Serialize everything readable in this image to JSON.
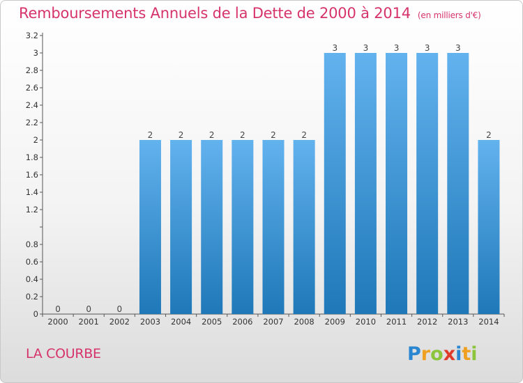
{
  "header": {
    "title": "Remboursements Annuels de la Dette de 2000 à 2014",
    "unit": "(en milliers d'€)"
  },
  "footer": {
    "commune": "LA COURBE",
    "logo_text": "Proxiti"
  },
  "colors": {
    "accent": "#d6336c",
    "bar_top": "#62b2ee",
    "bar_bottom": "#1f78b8"
  },
  "chart_data": {
    "type": "bar",
    "categories": [
      "2000",
      "2001",
      "2002",
      "2003",
      "2004",
      "2005",
      "2006",
      "2007",
      "2008",
      "2009",
      "2010",
      "2011",
      "2012",
      "2013",
      "2014"
    ],
    "values": [
      0,
      0,
      0,
      2,
      2,
      2,
      2,
      2,
      2,
      3,
      3,
      3,
      3,
      3,
      2
    ],
    "data_labels": [
      "0",
      "0",
      "0",
      "2",
      "2",
      "2",
      "2",
      "2",
      "2",
      "3",
      "3",
      "3",
      "3",
      "3",
      "2"
    ],
    "yticks": [
      0,
      0.2,
      0.4,
      0.6,
      0.8,
      1.2,
      1.4,
      1.6,
      1.8,
      2,
      2.2,
      2.4,
      2.6,
      2.8,
      3,
      3.2
    ],
    "ylim": [
      0,
      3.2
    ],
    "xlabel": "",
    "ylabel": "",
    "grid": false,
    "legend": "none"
  }
}
